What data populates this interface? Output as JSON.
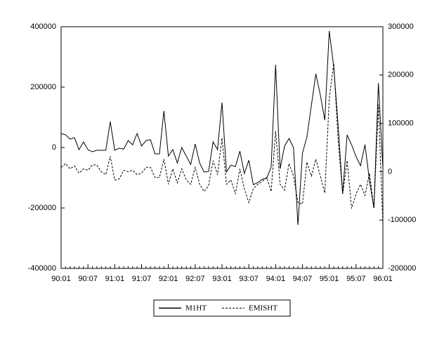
{
  "chart_data": {
    "type": "line",
    "categories": [
      "90:01",
      null,
      null,
      null,
      null,
      null,
      "90:07",
      null,
      null,
      null,
      null,
      null,
      "91:01",
      null,
      null,
      null,
      null,
      null,
      "91:07",
      null,
      null,
      null,
      null,
      null,
      "92:01",
      null,
      null,
      null,
      null,
      null,
      "92:07",
      null,
      null,
      null,
      null,
      null,
      "93:01",
      null,
      null,
      null,
      null,
      null,
      "93:07",
      null,
      null,
      null,
      null,
      null,
      "94:01",
      null,
      null,
      null,
      null,
      null,
      "94:07",
      null,
      null,
      null,
      null,
      null,
      "95:01",
      null,
      null,
      null,
      null,
      null,
      "95:07",
      null,
      null,
      null,
      null,
      null,
      "96:01"
    ],
    "series": [
      {
        "name": "M1HT",
        "color": "#000000",
        "axis": "y",
        "values": [
          46500,
          42000,
          28000,
          32500,
          -7000,
          18500,
          -7000,
          -14000,
          -9000,
          -9000,
          -9000,
          86000,
          -9000,
          -2000,
          -5000,
          23000,
          9000,
          46500,
          5000,
          23000,
          26000,
          -21000,
          -21000,
          121000,
          -28000,
          -7000,
          -51000,
          0,
          -28000,
          -56000,
          12000,
          -51000,
          -81000,
          -79000,
          19000,
          -7000,
          149000,
          -81000,
          -58000,
          -63000,
          -12000,
          -86000,
          -42000,
          -123000,
          -116000,
          -105000,
          -102000,
          -65000,
          274000,
          -70000,
          5000,
          30000,
          0,
          -256000,
          -19000,
          35000,
          140000,
          244000,
          174000,
          91000,
          386000,
          267000,
          70000,
          -153000,
          42000,
          9000,
          -30000,
          -60000,
          10000,
          -110000,
          -200000,
          214000,
          -70000
        ]
      },
      {
        "name": "EMISHT",
        "color": "#000000",
        "axis": "y2",
        "values": [
          9000,
          17000,
          6000,
          12000,
          -3000,
          6000,
          3000,
          14000,
          14000,
          0,
          -6000,
          32000,
          -17000,
          -15000,
          3000,
          0,
          3000,
          -6000,
          -3000,
          9000,
          9000,
          -12000,
          -12000,
          26000,
          -26000,
          6000,
          -23000,
          6000,
          -17000,
          -26000,
          9000,
          -26000,
          -41000,
          -29000,
          23000,
          -6000,
          70000,
          -26000,
          -17000,
          -46000,
          6000,
          -35000,
          -64000,
          -35000,
          -26000,
          -20000,
          -12000,
          -41000,
          84000,
          -26000,
          -38000,
          17000,
          -9000,
          -64000,
          -67000,
          20000,
          -9000,
          26000,
          -9000,
          -44000,
          151000,
          224000,
          64000,
          -46000,
          23000,
          -76000,
          -46000,
          -26000,
          -49000,
          -3000,
          -76000,
          139000,
          -110000
        ]
      }
    ],
    "ylim": [
      -400000,
      400000
    ],
    "yticks": [
      -400000,
      -200000,
      0,
      200000,
      400000
    ],
    "y2lim": [
      -200000,
      300000
    ],
    "y2ticks": [
      -200000,
      -100000,
      0,
      100000,
      200000,
      300000
    ],
    "grid": false
  }
}
